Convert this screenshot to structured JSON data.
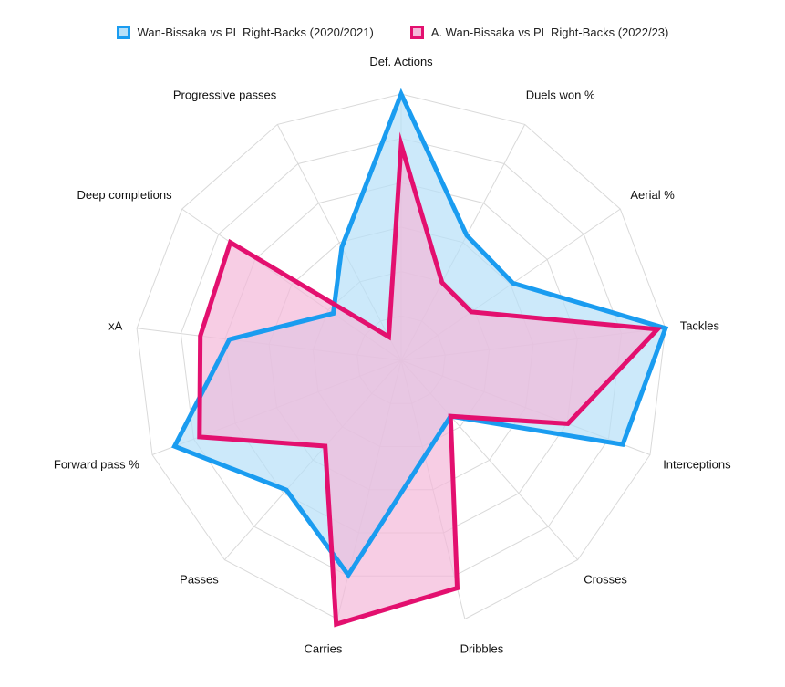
{
  "chart_data": {
    "type": "radar",
    "axes": [
      "Def. Actions",
      "Duels won %",
      "Aerial %",
      "Tackles",
      "Interceptions",
      "Crosses",
      "Dribbles",
      "Carries",
      "Passes",
      "Forward pass %",
      "xA",
      "Deep completions",
      "Progressive passes"
    ],
    "rmax": 100,
    "grid_levels": 6,
    "grid": true,
    "legend_position": "top-center",
    "series": [
      {
        "name": "Wan-Bissaka vs PL Right-Backs (2020/2021)",
        "values": [
          100,
          53,
          51,
          100,
          89,
          28,
          37,
          83,
          65,
          91,
          65,
          31,
          48
        ],
        "line_color": "#1a9cf0",
        "fill_color": "#b7e0f8"
      },
      {
        "name": "A. Wan-Bissaka vs PL Right-Backs (2022/23)",
        "values": [
          81,
          33,
          32,
          97,
          67,
          28,
          88,
          102,
          43,
          81,
          76,
          78,
          10
        ],
        "line_color": "#e3106f",
        "fill_color": "#f4b8d8"
      }
    ]
  }
}
